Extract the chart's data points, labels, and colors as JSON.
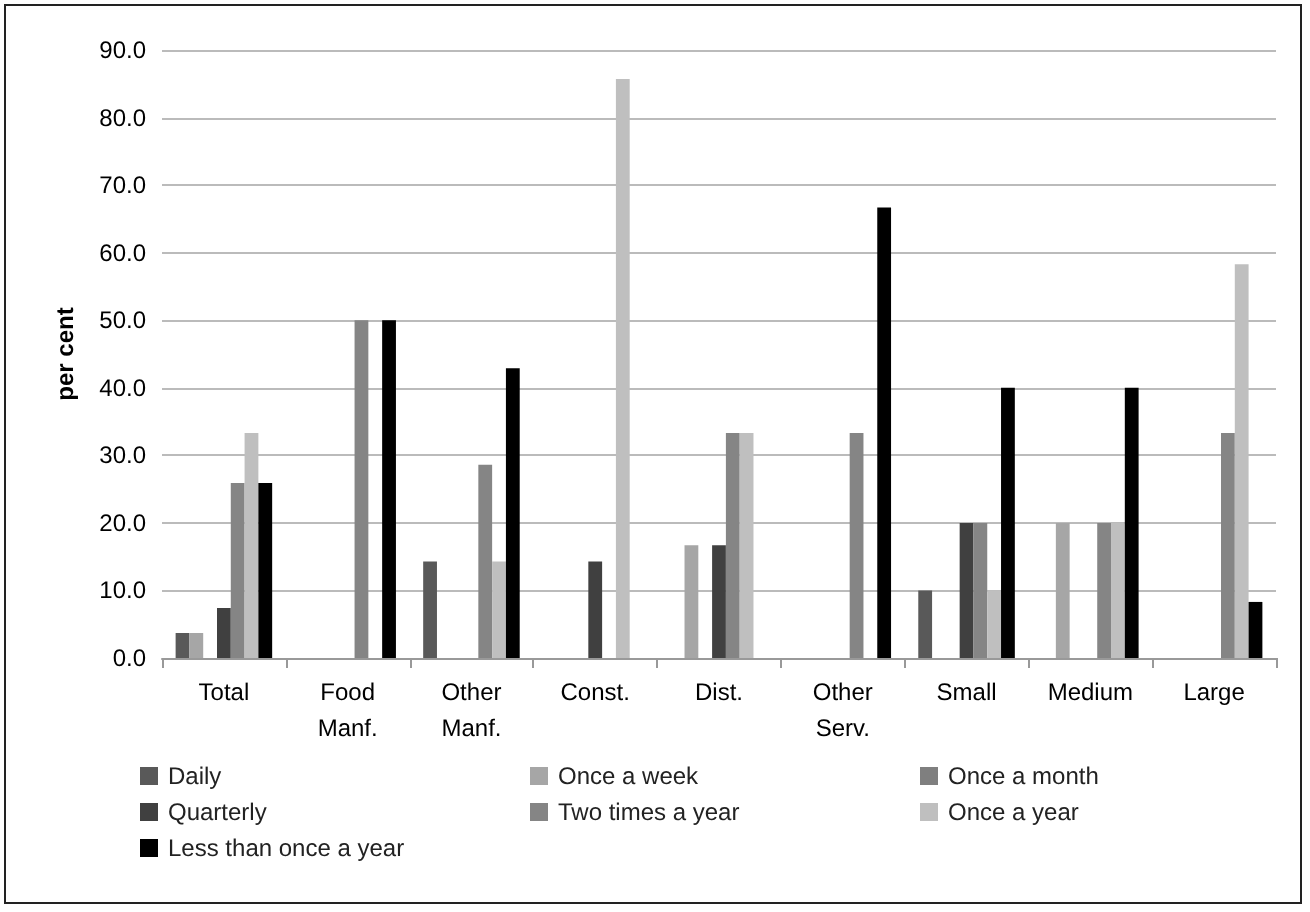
{
  "chart_data": {
    "type": "bar",
    "ylabel": "per cent",
    "categories": [
      "Total",
      "Food\nManf.",
      "Other\nManf.",
      "Const.",
      "Dist.",
      "Other\nServ.",
      "Small",
      "Medium",
      "Large"
    ],
    "series": [
      {
        "name": "Daily",
        "color": "#595959",
        "values": [
          3.7,
          0,
          14.3,
          0,
          0,
          0,
          10,
          0,
          0
        ]
      },
      {
        "name": "Once a week",
        "color": "#a6a6a6",
        "values": [
          3.7,
          0,
          0,
          0,
          16.7,
          0,
          0,
          20,
          0
        ]
      },
      {
        "name": "Once a month",
        "color": "#7f7f7f",
        "values": [
          0,
          0,
          0,
          0,
          0,
          0,
          0,
          0,
          0
        ]
      },
      {
        "name": "Quarterly",
        "color": "#404040",
        "values": [
          7.4,
          0,
          0,
          14.3,
          16.7,
          0,
          20,
          0,
          0
        ]
      },
      {
        "name": "Two times a year",
        "color": "#858585",
        "values": [
          25.9,
          50,
          28.6,
          0,
          33.3,
          33.3,
          20,
          20,
          33.3
        ]
      },
      {
        "name": "Once a year",
        "color": "#bfbfbf",
        "values": [
          33.3,
          0,
          14.3,
          85.7,
          33.3,
          0,
          10,
          20,
          58.3
        ]
      },
      {
        "name": "Less than once a year",
        "color": "#000000",
        "values": [
          25.9,
          50,
          42.9,
          0,
          0,
          66.7,
          40,
          40,
          8.3
        ]
      }
    ],
    "ylim": [
      0,
      90
    ],
    "yticks": [
      {
        "value": 0,
        "label": "0.0"
      },
      {
        "value": 10,
        "label": "10.0"
      },
      {
        "value": 20,
        "label": "20.0"
      },
      {
        "value": 30,
        "label": "30.0"
      },
      {
        "value": 40,
        "label": "40.0"
      },
      {
        "value": 50,
        "label": "50.0"
      },
      {
        "value": 60,
        "label": "60.0"
      },
      {
        "value": 70,
        "label": "70.0"
      },
      {
        "value": 80,
        "label": "80.0"
      },
      {
        "value": 90,
        "label": "90.0"
      }
    ],
    "grid": "y",
    "legend": "bottom"
  }
}
